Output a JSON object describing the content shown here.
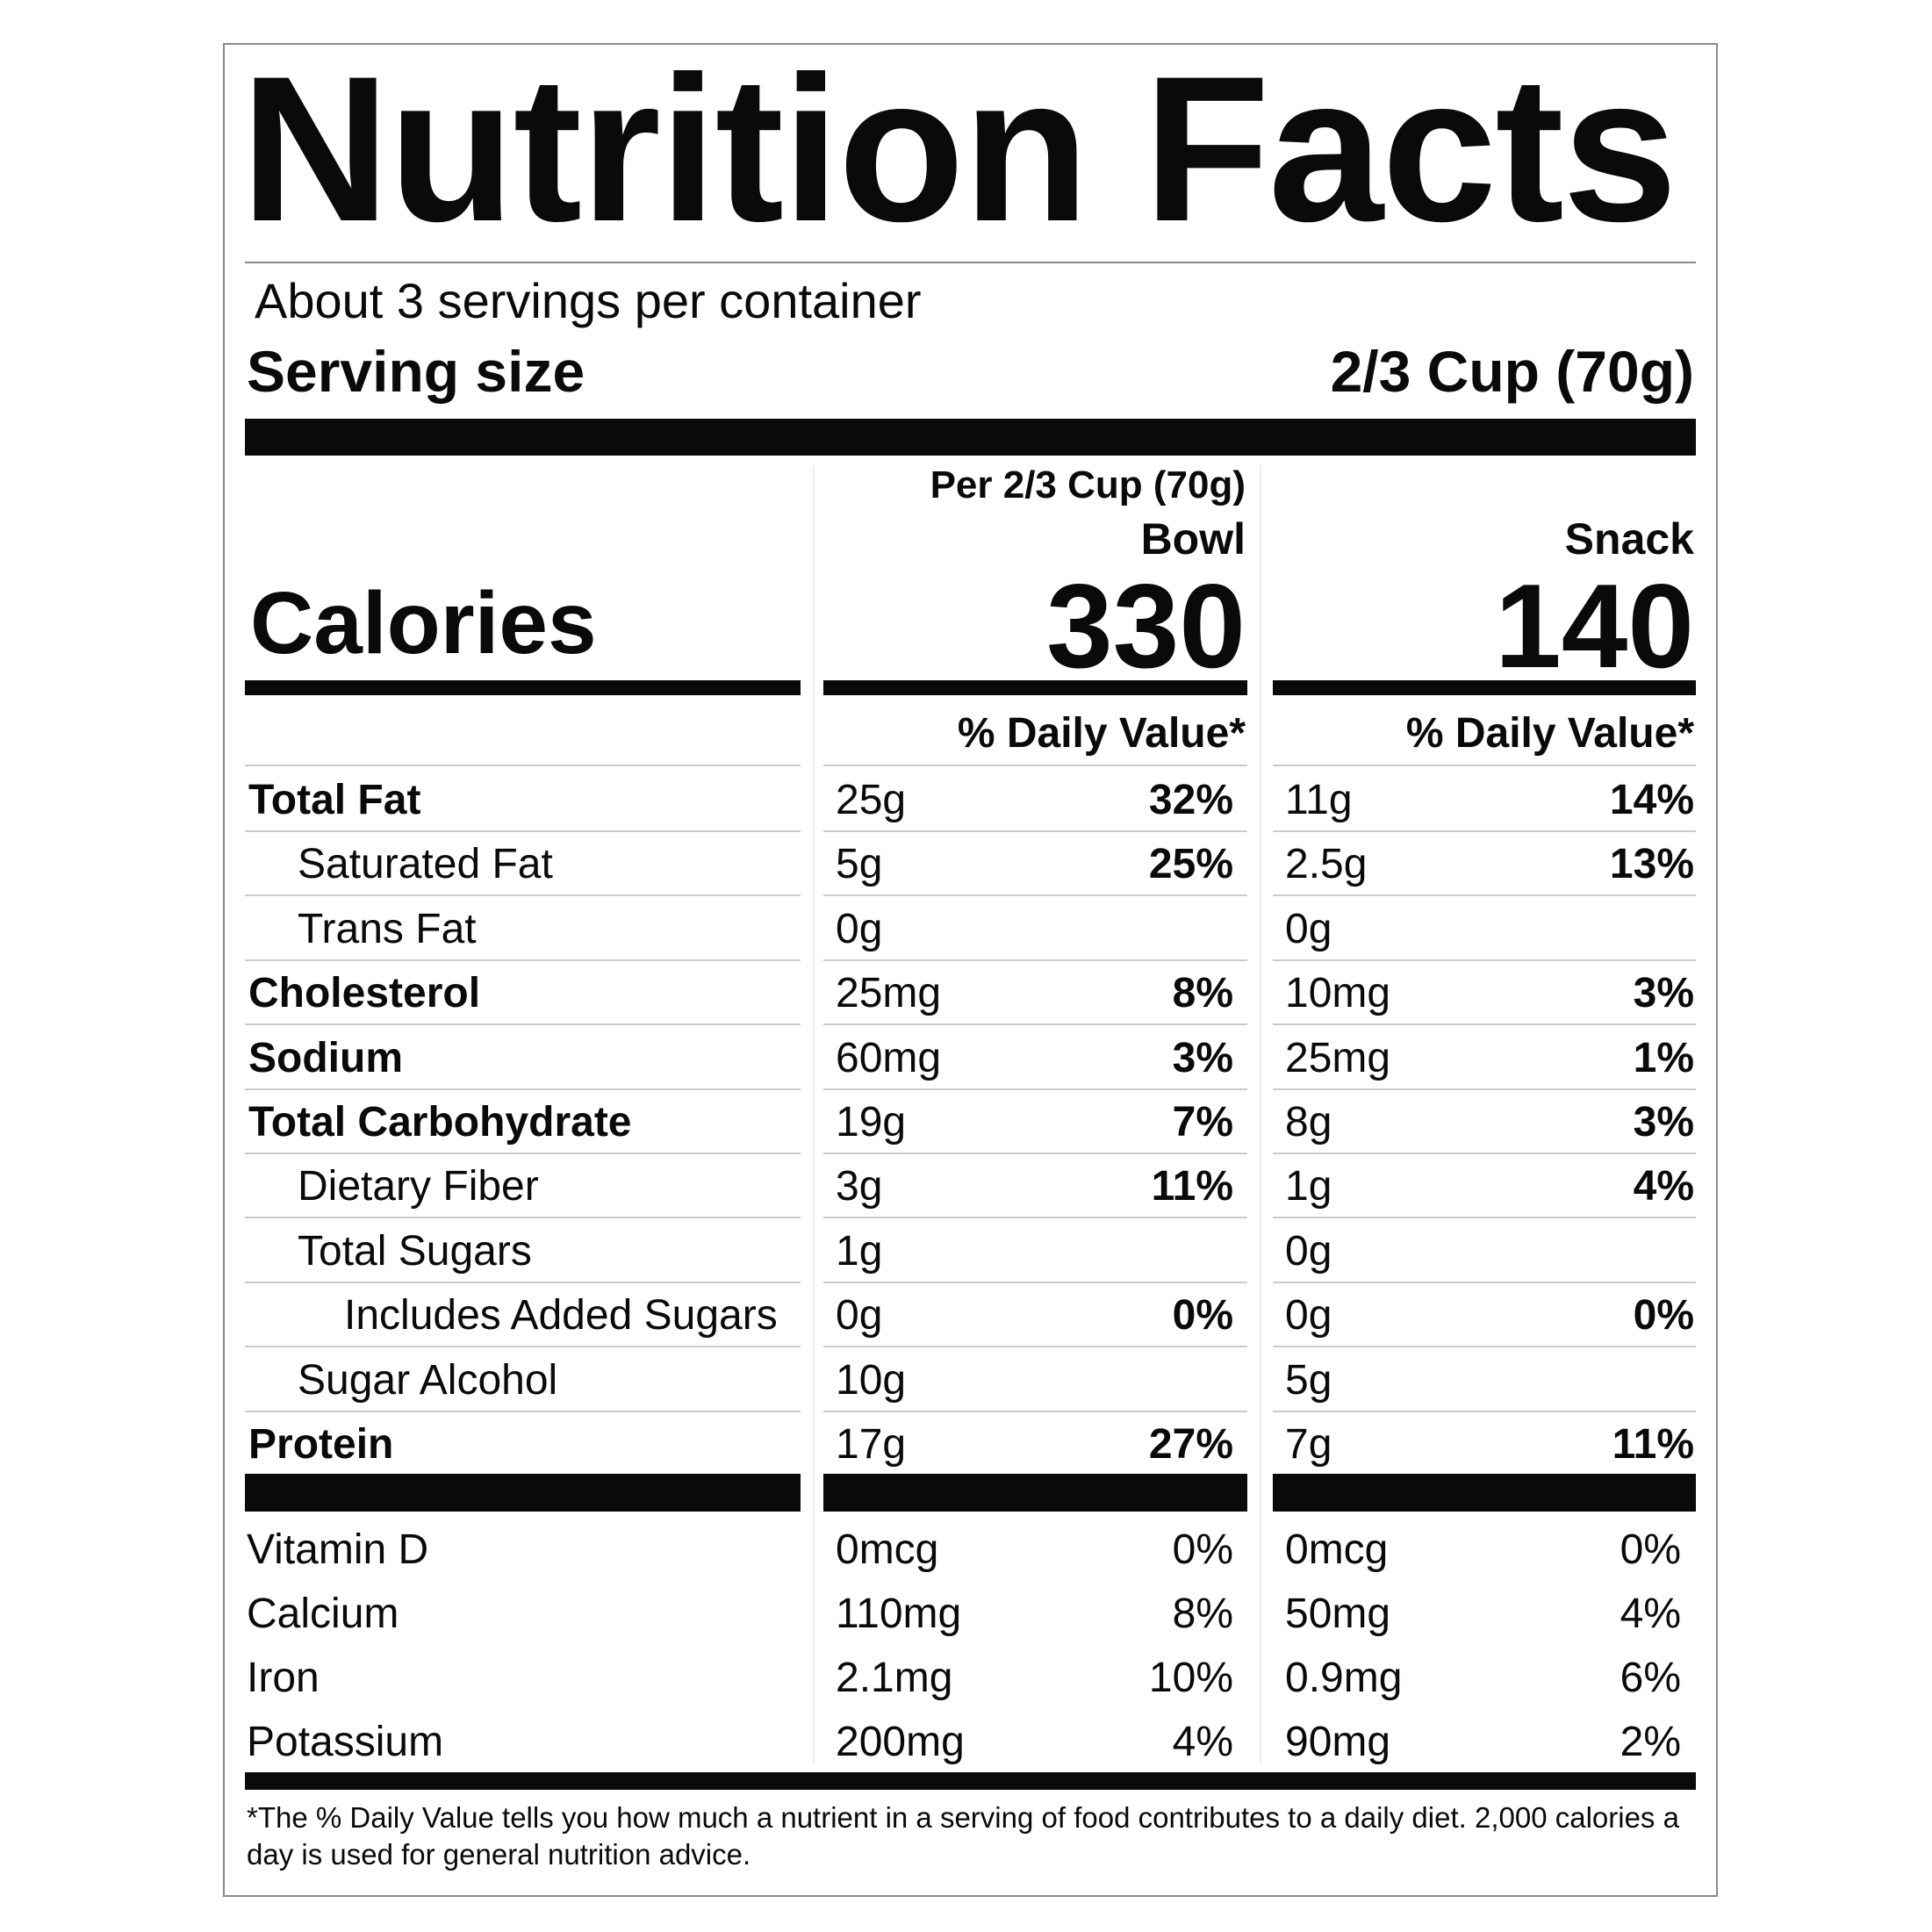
{
  "title": "Nutrition Facts",
  "servings_per_container": "About 3 servings per container",
  "serving_size_label": "Serving size",
  "serving_size_value": "2/3 Cup (70g)",
  "per_label": "Per 2/3 Cup (70g)",
  "columns": [
    {
      "name": "Bowl",
      "calories": "330",
      "dv_header": "% Daily Value*"
    },
    {
      "name": "Snack",
      "calories": "140",
      "dv_header": "% Daily Value*"
    }
  ],
  "calories_label": "Calories",
  "nutrients": [
    {
      "name": "Total Fat",
      "level": 0,
      "bold": true,
      "bowl": "25g",
      "bowl_dv": "32%",
      "snack": "11g",
      "snack_dv": "14%"
    },
    {
      "name": "Saturated Fat",
      "level": 1,
      "bold": false,
      "bowl": "5g",
      "bowl_dv": "25%",
      "snack": "2.5g",
      "snack_dv": "13%"
    },
    {
      "name": "Trans Fat",
      "level": 1,
      "bold": false,
      "bowl": "0g",
      "bowl_dv": "",
      "snack": "0g",
      "snack_dv": ""
    },
    {
      "name": "Cholesterol",
      "level": 0,
      "bold": true,
      "bowl": "25mg",
      "bowl_dv": "8%",
      "snack": "10mg",
      "snack_dv": "3%"
    },
    {
      "name": "Sodium",
      "level": 0,
      "bold": true,
      "bowl": "60mg",
      "bowl_dv": "3%",
      "snack": "25mg",
      "snack_dv": "1%"
    },
    {
      "name": "Total Carbohydrate",
      "level": 0,
      "bold": true,
      "bowl": "19g",
      "bowl_dv": "7%",
      "snack": "8g",
      "snack_dv": "3%"
    },
    {
      "name": "Dietary Fiber",
      "level": 1,
      "bold": false,
      "bowl": "3g",
      "bowl_dv": "11%",
      "snack": "1g",
      "snack_dv": "4%"
    },
    {
      "name": "Total Sugars",
      "level": 1,
      "bold": false,
      "bowl": "1g",
      "bowl_dv": "",
      "snack": "0g",
      "snack_dv": ""
    },
    {
      "name": "Includes Added Sugars",
      "level": 2,
      "bold": false,
      "bowl": "0g",
      "bowl_dv": "0%",
      "snack": "0g",
      "snack_dv": "0%"
    },
    {
      "name": "Sugar Alcohol",
      "level": 1,
      "bold": false,
      "bowl": "10g",
      "bowl_dv": "",
      "snack": "5g",
      "snack_dv": ""
    },
    {
      "name": "Protein",
      "level": 0,
      "bold": true,
      "bowl": "17g",
      "bowl_dv": "27%",
      "snack": "7g",
      "snack_dv": "11%"
    }
  ],
  "vitamins": [
    {
      "name": "Vitamin D",
      "bowl": "0mcg",
      "bowl_dv": "0%",
      "snack": "0mcg",
      "snack_dv": "0%"
    },
    {
      "name": "Calcium",
      "bowl": "110mg",
      "bowl_dv": "8%",
      "snack": "50mg",
      "snack_dv": "4%"
    },
    {
      "name": "Iron",
      "bowl": "2.1mg",
      "bowl_dv": "10%",
      "snack": "0.9mg",
      "snack_dv": "6%"
    },
    {
      "name": "Potassium",
      "bowl": "200mg",
      "bowl_dv": "4%",
      "snack": "90mg",
      "snack_dv": "2%"
    }
  ],
  "footnote": "*The % Daily Value tells you how much a nutrient in a serving of food contributes to a daily diet. 2,000 calories a day is used for general nutrition advice."
}
